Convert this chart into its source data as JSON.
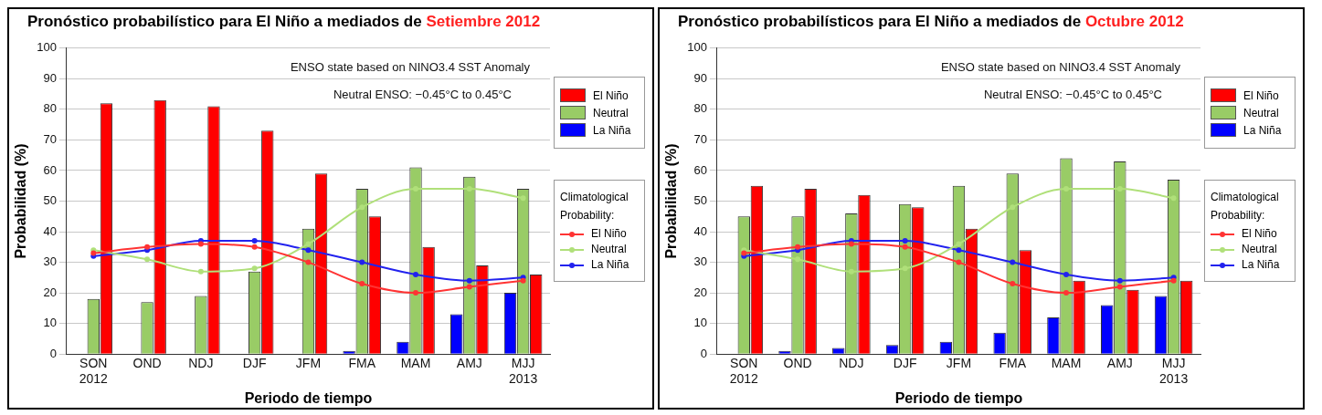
{
  "chart_data": [
    {
      "type": "bar",
      "title": "Pronóstico probabilístico para El Niño a mediados de Setiembre 2012",
      "xlabel": "Periodo de tiempo",
      "ylabel": "Probabilidad (%)",
      "legend_title": "Climatological Probability:",
      "categories": [
        "SON 2012",
        "OND",
        "NDJ",
        "DJF",
        "JFM",
        "FMA",
        "MAM",
        "AMJ",
        "MJJ 2013"
      ],
      "series": [
        {
          "name": "La Niña",
          "color": "#0000ff",
          "values": [
            0,
            0,
            0,
            0,
            0,
            1,
            4,
            13,
            20
          ]
        },
        {
          "name": "Neutral",
          "color": "#99cc66",
          "values": [
            18,
            17,
            19,
            27,
            41,
            54,
            61,
            58,
            54
          ]
        },
        {
          "name": "El Niño",
          "color": "#ff0000",
          "values": [
            82,
            83,
            81,
            73,
            59,
            45,
            35,
            29,
            26
          ]
        },
        {
          "name": "El Niño",
          "type": "line",
          "color": "#ff3333",
          "values": [
            33,
            35,
            36,
            35,
            30,
            23,
            20,
            22,
            24
          ]
        },
        {
          "name": "Neutral",
          "type": "line",
          "color": "#b0e07a",
          "values": [
            34,
            31,
            27,
            28,
            36,
            48,
            54,
            54,
            51
          ]
        },
        {
          "name": "La Niña",
          "type": "line",
          "color": "#2222ee",
          "values": [
            32,
            34,
            37,
            37,
            34,
            30,
            26,
            24,
            25
          ]
        }
      ],
      "ylim": [
        0,
        100
      ],
      "yticks": [
        0,
        10,
        20,
        30,
        40,
        50,
        60,
        70,
        80,
        90,
        100
      ],
      "grid": "y",
      "legend": "right",
      "marker": "circle",
      "annotations": [
        "ENSO state based on NINO3.4 SST Anomaly",
        "Neutral ENSO: −0.45°C to 0.45°C"
      ]
    },
    {
      "type": "bar",
      "title": "Pronóstico probabilísticos para El Niño a mediados de Octubre 2012",
      "xlabel": "Periodo de tiempo",
      "ylabel": "Probabilidad (%)",
      "legend_title": "Climatological Probability:",
      "categories": [
        "SON 2012",
        "OND",
        "NDJ",
        "DJF",
        "JFM",
        "FMA",
        "MAM",
        "AMJ",
        "MJJ 2013"
      ],
      "series": [
        {
          "name": "La Niña",
          "color": "#0000ff",
          "values": [
            0,
            1,
            2,
            3,
            4,
            7,
            12,
            16,
            19
          ]
        },
        {
          "name": "Neutral",
          "color": "#99cc66",
          "values": [
            45,
            45,
            46,
            49,
            55,
            59,
            64,
            63,
            57
          ]
        },
        {
          "name": "El Niño",
          "color": "#ff0000",
          "values": [
            55,
            54,
            52,
            48,
            41,
            34,
            24,
            21,
            24
          ]
        },
        {
          "name": "El Niño",
          "type": "line",
          "color": "#ff3333",
          "values": [
            33,
            35,
            36,
            35,
            30,
            23,
            20,
            22,
            24
          ]
        },
        {
          "name": "Neutral",
          "type": "line",
          "color": "#b0e07a",
          "values": [
            34,
            31,
            27,
            28,
            36,
            48,
            54,
            54,
            51
          ]
        },
        {
          "name": "La Niña",
          "type": "line",
          "color": "#2222ee",
          "values": [
            32,
            34,
            37,
            37,
            34,
            30,
            26,
            24,
            25
          ]
        }
      ],
      "ylim": [
        0,
        100
      ],
      "yticks": [
        0,
        10,
        20,
        30,
        40,
        50,
        60,
        70,
        80,
        90,
        100
      ],
      "grid": "y",
      "legend": "right",
      "marker": "circle",
      "annotations": [
        "ENSO state based on NINO3.4 SST Anomaly",
        "Neutral ENSO: −0.45°C to 0.45°C"
      ]
    }
  ]
}
